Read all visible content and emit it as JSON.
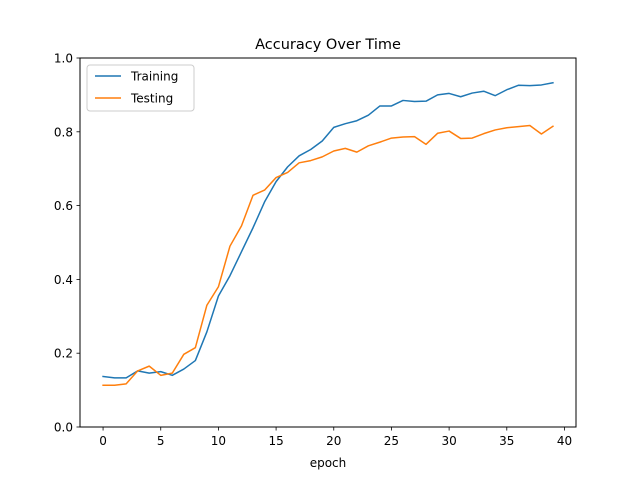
{
  "chart_data": {
    "type": "line",
    "title": "Accuracy Over Time",
    "xlabel": "epoch",
    "ylabel": "",
    "xlim": [
      -2,
      41
    ],
    "ylim": [
      0,
      1
    ],
    "x_ticks": [
      0,
      5,
      10,
      15,
      20,
      25,
      30,
      35,
      40
    ],
    "y_ticks": [
      0.0,
      0.2,
      0.4,
      0.6,
      0.8,
      1.0
    ],
    "x_tick_labels": [
      "0",
      "5",
      "10",
      "15",
      "20",
      "25",
      "30",
      "35",
      "40"
    ],
    "y_tick_labels": [
      "0.0",
      "0.2",
      "0.4",
      "0.6",
      "0.8",
      "1.0"
    ],
    "grid": false,
    "legend_position": "top-left",
    "x": [
      0,
      1,
      2,
      3,
      4,
      5,
      6,
      7,
      8,
      9,
      10,
      11,
      12,
      13,
      14,
      15,
      16,
      17,
      18,
      19,
      20,
      21,
      22,
      23,
      24,
      25,
      26,
      27,
      28,
      29,
      30,
      31,
      32,
      33,
      34,
      35,
      36,
      37,
      38,
      39
    ],
    "series": [
      {
        "name": "Training",
        "color": "#1f77b4",
        "values": [
          0.137,
          0.133,
          0.133,
          0.152,
          0.146,
          0.15,
          0.14,
          0.157,
          0.18,
          0.258,
          0.355,
          0.41,
          0.475,
          0.54,
          0.61,
          0.665,
          0.705,
          0.735,
          0.752,
          0.775,
          0.812,
          0.822,
          0.83,
          0.845,
          0.87,
          0.87,
          0.885,
          0.882,
          0.883,
          0.9,
          0.904,
          0.895,
          0.905,
          0.91,
          0.898,
          0.914,
          0.926,
          0.925,
          0.927,
          0.933
        ]
      },
      {
        "name": "Testing",
        "color": "#ff7f0e",
        "values": [
          0.113,
          0.113,
          0.117,
          0.152,
          0.165,
          0.14,
          0.146,
          0.197,
          0.215,
          0.33,
          0.38,
          0.49,
          0.545,
          0.628,
          0.642,
          0.676,
          0.69,
          0.716,
          0.722,
          0.732,
          0.748,
          0.755,
          0.745,
          0.762,
          0.772,
          0.783,
          0.786,
          0.787,
          0.766,
          0.796,
          0.802,
          0.782,
          0.783,
          0.795,
          0.805,
          0.811,
          0.814,
          0.817,
          0.794,
          0.815
        ]
      }
    ]
  }
}
